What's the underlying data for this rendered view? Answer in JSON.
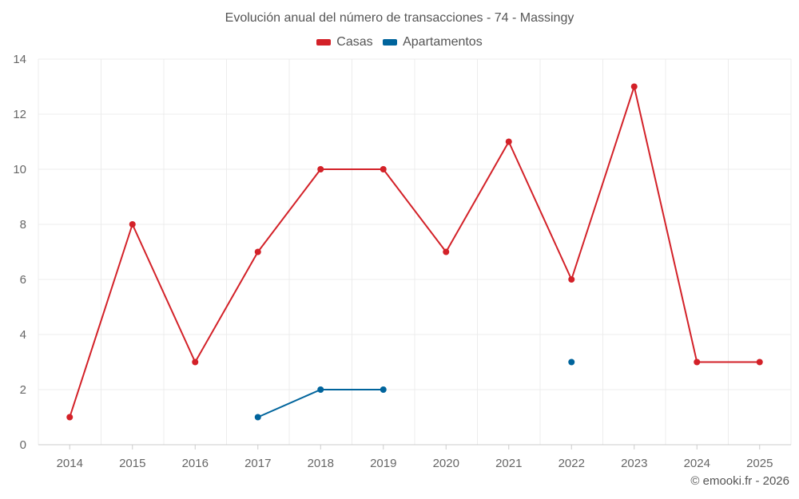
{
  "chart_data": {
    "type": "line",
    "title": "Evolución anual del número de transacciones - 74 - Massingy",
    "categories": [
      "2014",
      "2015",
      "2016",
      "2017",
      "2018",
      "2019",
      "2020",
      "2021",
      "2022",
      "2023",
      "2024",
      "2025"
    ],
    "series": [
      {
        "name": "Casas",
        "color": "#d32128",
        "values": [
          1,
          8,
          3,
          7,
          10,
          10,
          7,
          11,
          6,
          13,
          3,
          3
        ]
      },
      {
        "name": "Apartamentos",
        "color": "#00649c",
        "values": [
          null,
          null,
          null,
          1,
          2,
          2,
          null,
          null,
          3,
          null,
          null,
          null
        ]
      }
    ],
    "yticks": [
      "0",
      "2",
      "4",
      "6",
      "8",
      "10",
      "12",
      "14"
    ],
    "ylim": [
      0,
      14
    ],
    "grid": true,
    "legend_position": "top-center",
    "xlabel": "",
    "ylabel": ""
  },
  "footer": {
    "credit": "© emooki.fr - 2026"
  }
}
